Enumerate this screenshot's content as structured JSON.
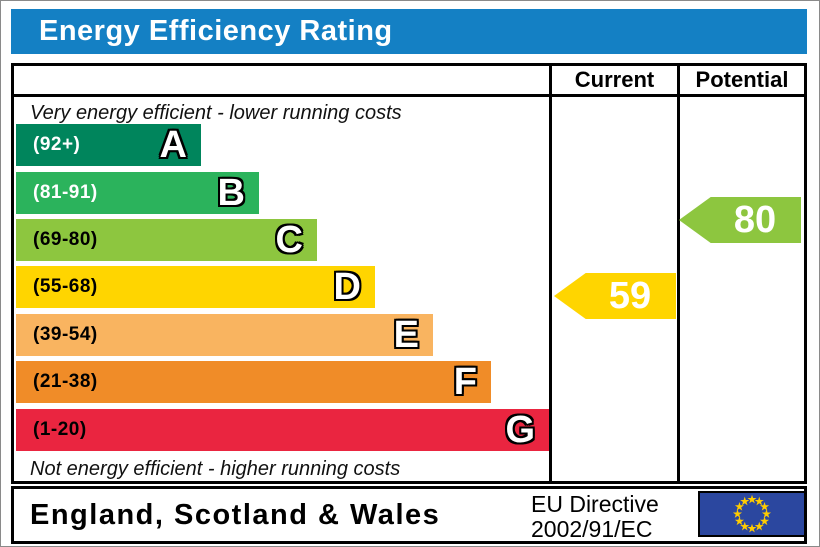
{
  "title": "Energy Efficiency Rating",
  "table": {
    "current_label": "Current",
    "potential_label": "Potential"
  },
  "notes": {
    "top": "Very energy efficient - lower running costs",
    "bottom": "Not energy efficient - higher running costs"
  },
  "chart_data": {
    "type": "bar",
    "orientation": "horizontal",
    "title": "Energy Efficiency Rating",
    "categories": [
      "A",
      "B",
      "C",
      "D",
      "E",
      "F",
      "G"
    ],
    "ranges": [
      "(92+)",
      "(81-91)",
      "(69-80)",
      "(55-68)",
      "(39-54)",
      "(21-38)",
      "(1-20)"
    ],
    "values": [
      185,
      243,
      301,
      359,
      417,
      475,
      533
    ],
    "colors": [
      "#00855c",
      "#2bb35c",
      "#8dc63f",
      "#ffd500",
      "#f9b460",
      "#f08c28",
      "#ea2540"
    ],
    "range_label_colors": [
      "#ffffff",
      "#ffffff",
      "#000000",
      "#000000",
      "#000000",
      "#000000",
      "#000000"
    ],
    "current": {
      "value": "59",
      "band": "D",
      "color": "#ffd500"
    },
    "potential": {
      "value": "80",
      "band": "C",
      "color": "#8dc63f"
    }
  },
  "footer": {
    "region": "England, Scotland & Wales",
    "directive_line1": "EU Directive",
    "directive_line2": "2002/91/EC"
  },
  "theme": {
    "title_bg": "#1480c4",
    "title_text": "#ffffff",
    "border": "#000000",
    "eu_flag_blue": "#2b479f",
    "eu_star_yellow": "#ffcc00"
  }
}
